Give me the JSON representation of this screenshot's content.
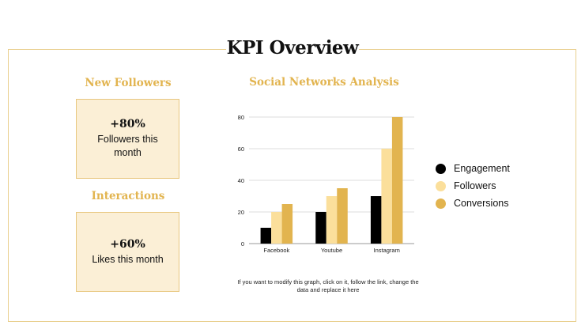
{
  "title": "KPI Overview",
  "kpis": [
    {
      "heading": "New Followers",
      "value": "+80%",
      "caption": "Followers this month"
    },
    {
      "heading": "Interactions",
      "value": "+60%",
      "caption": "Likes this month"
    }
  ],
  "chart_title": "Social Networks Analysis",
  "note": "If you want to modify this graph, click on it, follow the link, change the data and replace it here",
  "colors": {
    "accent": "#e2b44f",
    "box_fill": "#fbefd6",
    "box_border": "#e8c77f"
  },
  "chart_data": {
    "type": "bar",
    "title": "Social Networks Analysis",
    "xlabel": "",
    "ylabel": "",
    "categories": [
      "Facebook",
      "Youtube",
      "Instagram"
    ],
    "series": [
      {
        "name": "Engagement",
        "color": "#000000",
        "values": [
          10,
          20,
          30
        ]
      },
      {
        "name": "Followers",
        "color": "#fbdf9b",
        "values": [
          20,
          30,
          60
        ]
      },
      {
        "name": "Conversions",
        "color": "#e2b44f",
        "values": [
          25,
          35,
          80
        ]
      }
    ],
    "ylim": [
      0,
      80
    ],
    "yticks": [
      0,
      20,
      40,
      60,
      80
    ],
    "grid": true,
    "legend": "right"
  }
}
